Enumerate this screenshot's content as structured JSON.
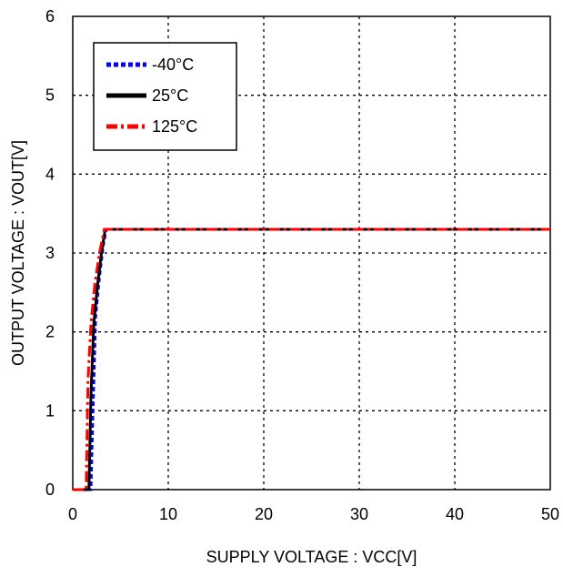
{
  "chart_data": {
    "type": "line",
    "xlabel": "SUPPLY VOLTAGE : VCC[V]",
    "ylabel": "OUTPUT VOLTAGE : VOUT[V]",
    "xlim": [
      0,
      50
    ],
    "ylim": [
      0,
      6
    ],
    "x_ticks": [
      0,
      10,
      20,
      30,
      40,
      50
    ],
    "y_ticks": [
      0,
      1,
      2,
      3,
      4,
      5,
      6
    ],
    "x_tick_labels": [
      "0",
      "10",
      "20",
      "30",
      "40",
      "50"
    ],
    "y_tick_labels": [
      "0",
      "1",
      "2",
      "3",
      "4",
      "5",
      "6"
    ],
    "grid": "dotted",
    "legend_position": "top-left",
    "series": [
      {
        "name": "-40°C",
        "color": "#0000ff",
        "style": "dotted",
        "x": [
          0,
          1.9,
          2.1,
          2.4,
          2.8,
          3.2,
          3.5,
          50
        ],
        "y": [
          0,
          0,
          0.9,
          2.2,
          2.7,
          3.1,
          3.3,
          3.3
        ]
      },
      {
        "name": "25°C",
        "color": "#000000",
        "style": "solid",
        "x": [
          0,
          1.7,
          1.9,
          2.2,
          2.6,
          3.0,
          3.4,
          50
        ],
        "y": [
          0,
          0,
          1.2,
          2.1,
          2.6,
          3.0,
          3.3,
          3.3
        ]
      },
      {
        "name": "125°C",
        "color": "#ff0000",
        "style": "dashdot",
        "x": [
          0,
          1.4,
          1.6,
          1.9,
          2.3,
          2.8,
          3.3,
          50
        ],
        "y": [
          0,
          0,
          1.4,
          2.1,
          2.6,
          3.0,
          3.3,
          3.3
        ]
      }
    ]
  }
}
